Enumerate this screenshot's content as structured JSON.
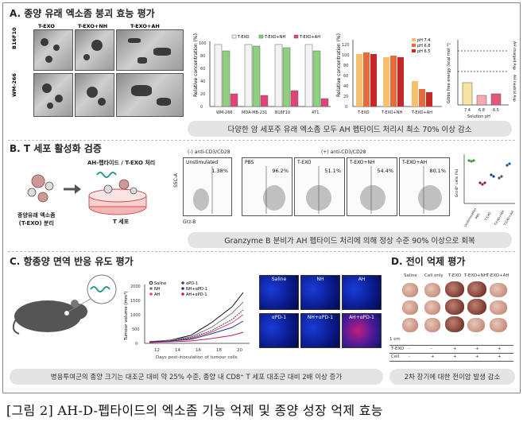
{
  "sections": {
    "a": {
      "title": "A. 종양 유래 엑소좀 붕괴 효능 평가",
      "caption": "다양한 암 세포주 유래 엑소좀 모두 AH 펩타이드 처리시 최소 70% 이상 감소"
    },
    "b": {
      "title": "B. T 세포 활성화 검증",
      "caption": "Granzyme B 분비가 AH 펩타이드 처리에 의해 정상 수준 90% 이상으로 회복"
    },
    "c": {
      "title": "C. 항종양 면역 반응 유도 평가",
      "caption": "병용투여군의 종양 크기는 대조군 대비 약 25% 수준, 종양 내 CD8⁺ T 세포 대조군 대비 2배 이상 증가"
    },
    "d": {
      "title": "D. 전이 억제 평가",
      "caption": "2차 장기에 대한 전이암 발생 감소"
    }
  },
  "em_panel": {
    "col_labels": [
      "T-EXO",
      "T-EXO+NH",
      "T-EXO+AH"
    ],
    "row_labels": [
      "B16F10",
      "WM-266"
    ]
  },
  "chart1": {
    "ylabel": "Relative concentration (%)",
    "legend": [
      "T-EXO",
      "T-EXO+NH",
      "T-EXO+AH"
    ],
    "categories": [
      "WM-266",
      "MDA-MB-231",
      "B16F10",
      "4T1"
    ],
    "yticks": [
      "0",
      "20",
      "40",
      "60",
      "80",
      "100"
    ]
  },
  "chart2": {
    "ylabel": "Relative concentration (%)",
    "legend": [
      "pH 7.4",
      "pH 6.8",
      "pH 6.5"
    ],
    "categories": [
      "T-EXO",
      "T-EXO+NH",
      "T-EXO+AH"
    ],
    "yticks": [
      "0",
      "20",
      "40",
      "60",
      "80",
      "100",
      "120"
    ]
  },
  "chart3": {
    "ylabel": "Gibbs free energy (kcal mol⁻¹)",
    "xlabel": "Solution pH",
    "categories": [
      "7.4",
      "6.8",
      "6.5"
    ],
    "right_labels": [
      "AH charged Asp",
      "AH neutral Asp"
    ]
  },
  "flow": {
    "header_neg": "(-) anti-CD3/CD28",
    "header_pos": "(+) anti-CD3/CD28",
    "ylabel": "SSC-A",
    "xlabel": "Grz-B",
    "panels": [
      {
        "name": "Unstimulated",
        "pct": "1.38%"
      },
      {
        "name": "PBS",
        "pct": "96.2%"
      },
      {
        "name": "T-EXO",
        "pct": "51.1%"
      },
      {
        "name": "T-EXO+NH",
        "pct": "54.4%"
      },
      {
        "name": "T-EXO+AH",
        "pct": "80.1%"
      }
    ]
  },
  "schematic": {
    "peptide_label": "AH-펩타이드 / T-EXO 처리",
    "left_label": "종양유래 엑소좀\n(T-EXO) 분리",
    "dish_label": "T 세포"
  },
  "scatter": {
    "ylabel": "Grz-B⁺ cells (%)",
    "xlabels": [
      "Unstimulated",
      "PBS",
      "T-EXO",
      "T-EXO+NH",
      "T-EXO+AH"
    ]
  },
  "tumour": {
    "ylabel": "Tumour volume (mm³)",
    "xlabel": "Days post-inoculation of tumour cells",
    "xticks": [
      "12",
      "14",
      "16",
      "18",
      "20"
    ],
    "yticks": [
      "0",
      "500",
      "1000",
      "1500",
      "2000"
    ],
    "legend": [
      "Saline",
      "NH",
      "AH",
      "αPD-1",
      "NH+αPD-1",
      "AH+αPD-1"
    ]
  },
  "micro": {
    "labels": [
      "Saline",
      "NH",
      "AH",
      "αPD-1",
      "NH+αPD-1",
      "AH+αPD-1"
    ]
  },
  "lungs": {
    "col_labels": [
      "Saline",
      "Cell only",
      "T-EXO",
      "T-EXO+NH",
      "T-EXO+AH"
    ],
    "scale": "1 cm",
    "rows": [
      {
        "name": "T-EXO",
        "values": [
          "-",
          "-",
          "+",
          "+",
          "+"
        ]
      },
      {
        "name": "Cell",
        "values": [
          "-",
          "+",
          "+",
          "+",
          "+"
        ]
      }
    ]
  },
  "figure_caption": "[그림 2] AH-D-펩타이드의 엑소좀 기능 억제 및 종양 성장 억제 효능"
}
